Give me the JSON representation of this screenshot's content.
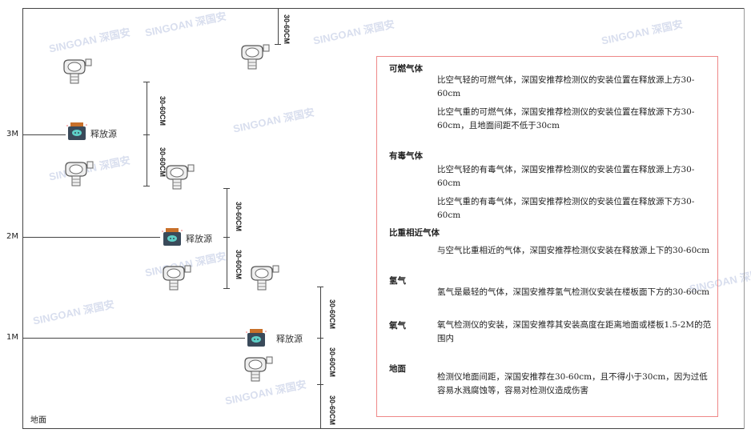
{
  "watermark": "SINGOAN 深国安",
  "floors": {
    "m3": "3M",
    "m2": "2M",
    "m1": "1M",
    "ground": "地面"
  },
  "source_label": "释放源",
  "dimension_label": "30-60CM",
  "panel": {
    "combustible": {
      "title": "可燃气体",
      "lighter": "比空气轻的可燃气体，深国安推荐检测仪的安装位置在释放源上方30-60cm",
      "heavier": "比空气重的可燃气体，深国安推荐检测仪的安装位置在释放源下方30-60cm，且地面间距不低于30cm"
    },
    "toxic": {
      "title": "有毒气体",
      "lighter": "比空气轻的有毒气体，深国安推荐检测仪的安装位置在释放源上方30-60cm",
      "heavier": "比空气重的有毒气体，深国安推荐检测仪的安装位置在释放源下方30-60cm"
    },
    "similar": {
      "title": "比重相近气体",
      "text": "与空气比重相近的气体，深国安推荐检测仪安装在释放源上下的30-60cm"
    },
    "hydrogen": {
      "title": "氢气",
      "text": "氢气是最轻的气体，深国安推荐氢气检测仪安装在楼板面下方的30-60cm"
    },
    "oxygen": {
      "title": "氧气",
      "text": "氧气检测仪的安装，深国安推荐其安装高度在距离地面或楼板1.5-2M的范围内"
    },
    "ground": {
      "title": "地面",
      "text": "检测仪地面间距，深国安推荐在30-60cm，且不得小于30cm，因为过低容易水溅腐蚀等，容易对检测仪造成伤害"
    }
  },
  "colors": {
    "border": "#ee8888",
    "source_body": "#3a4a5a",
    "source_top": "#c8702a",
    "source_face": "#5fd0c8"
  }
}
